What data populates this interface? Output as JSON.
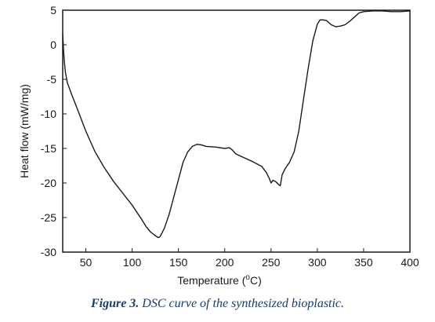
{
  "caption": {
    "label": "Figure 3.",
    "text": "DSC curve of the synthesized bioplastic."
  },
  "chart_data": {
    "type": "line",
    "xlabel_main": "Temperature (",
    "xlabel_unit_sup": "o",
    "xlabel_unit": "C)",
    "ylabel": "Heat flow (mW/mg)",
    "xlim": [
      25,
      400
    ],
    "ylim": [
      -30,
      5
    ],
    "x_ticks": [
      50,
      100,
      150,
      200,
      250,
      300,
      350,
      400
    ],
    "y_ticks": [
      5,
      0,
      -5,
      -10,
      -15,
      -20,
      -25,
      -30
    ],
    "grid": false,
    "line_color": "#1a1a1a",
    "series": [
      {
        "x": [
          25,
          26,
          27,
          28,
          30,
          35,
          40,
          50,
          60,
          70,
          80,
          90,
          100,
          110,
          115,
          120,
          125,
          128,
          130,
          132,
          135,
          140,
          145,
          150,
          155,
          160,
          165,
          170,
          175,
          180,
          190,
          200,
          205,
          208,
          212,
          220,
          230,
          240,
          245,
          248,
          250,
          252,
          255,
          258,
          260,
          262,
          265,
          270,
          275,
          280,
          285,
          290,
          295,
          300,
          303,
          306,
          310,
          315,
          320,
          325,
          330,
          335,
          340,
          345,
          350,
          360,
          370,
          380,
          390,
          400
        ],
        "y": [
          1.5,
          -1.0,
          -2.8,
          -4.0,
          -5.5,
          -7.3,
          -9.0,
          -12.5,
          -15.5,
          -17.8,
          -19.8,
          -21.5,
          -23.2,
          -25.2,
          -26.3,
          -27.1,
          -27.6,
          -27.9,
          -27.8,
          -27.3,
          -26.5,
          -24.5,
          -22.0,
          -19.5,
          -17.0,
          -15.5,
          -14.7,
          -14.4,
          -14.5,
          -14.7,
          -14.8,
          -15.0,
          -14.9,
          -15.2,
          -15.8,
          -16.3,
          -16.9,
          -17.6,
          -18.5,
          -19.3,
          -20.0,
          -19.6,
          -19.8,
          -20.2,
          -20.4,
          -18.8,
          -18.0,
          -17.0,
          -15.5,
          -12.5,
          -8.0,
          -3.5,
          0.5,
          3.0,
          3.6,
          3.6,
          3.5,
          2.9,
          2.6,
          2.7,
          2.9,
          3.4,
          4.0,
          4.6,
          4.8,
          4.9,
          4.9,
          4.8,
          4.8,
          4.9
        ]
      }
    ]
  }
}
